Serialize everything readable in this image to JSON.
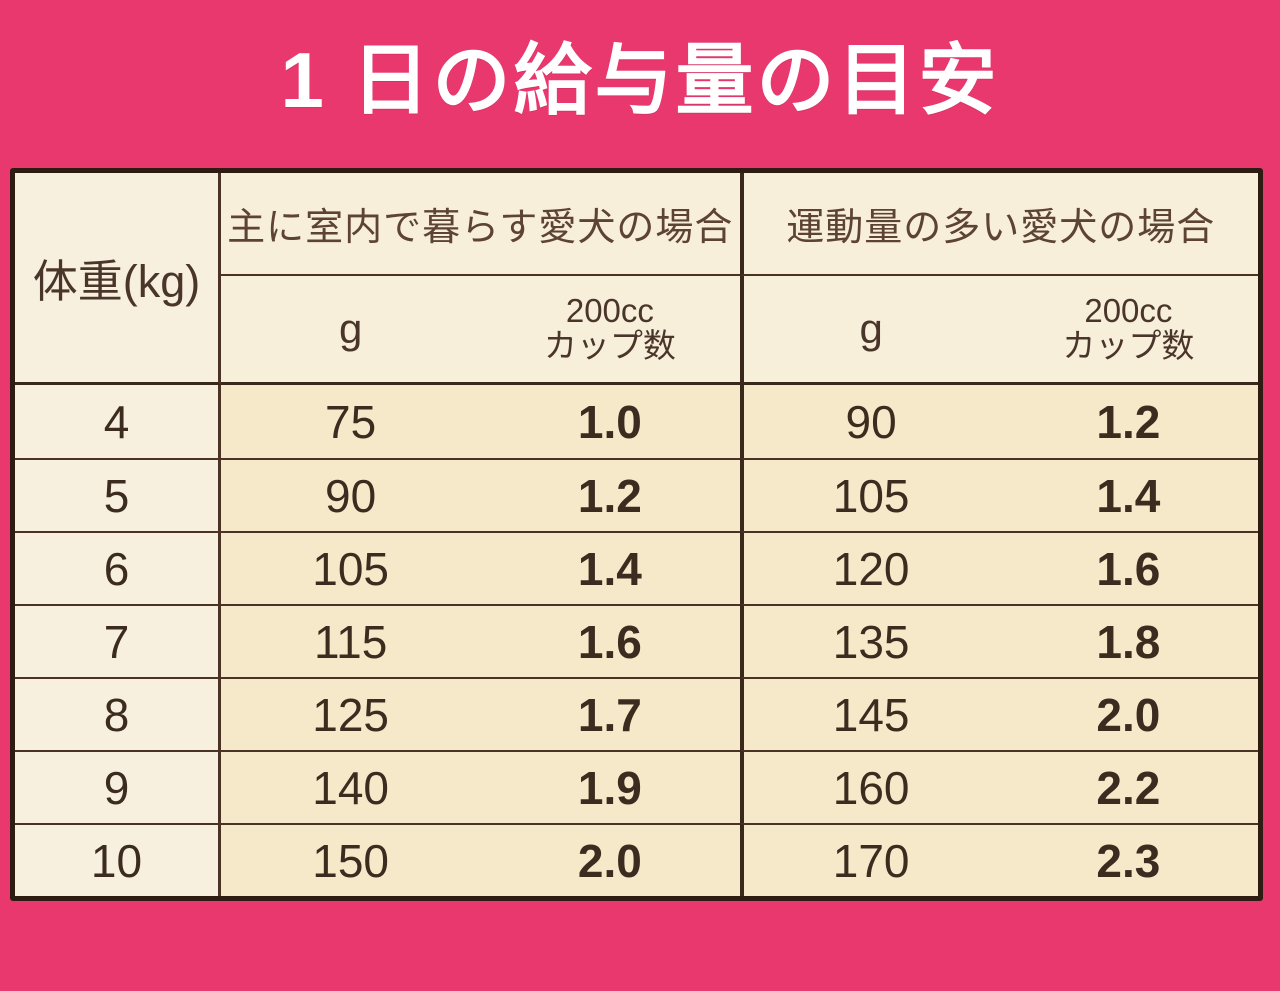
{
  "title": "1 日の給与量の目安",
  "colors": {
    "background": "#E8386E",
    "title_text": "#FFFFFF",
    "table_cream": "#F8EFDA",
    "data_cell": "#F6E9CA",
    "weight_cell": "#F8F0DF",
    "outer_border": "#2E1C12",
    "grid_line": "#4A3225",
    "number_text": "#3C2C20",
    "header_text": "#5D4334"
  },
  "table": {
    "weight_header": "体重(kg)",
    "groups": [
      {
        "title": "主に室内で暮らす愛犬の場合",
        "g_label": "g",
        "cup_label_line1": "200cc",
        "cup_label_line2": "カップ数"
      },
      {
        "title": "運動量の多い愛犬の場合",
        "g_label": "g",
        "cup_label_line1": "200cc",
        "cup_label_line2": "カップ数"
      }
    ],
    "rows": [
      {
        "weight": "4",
        "indoor_g": "75",
        "indoor_cups": "1.0",
        "active_g": "90",
        "active_cups": "1.2"
      },
      {
        "weight": "5",
        "indoor_g": "90",
        "indoor_cups": "1.2",
        "active_g": "105",
        "active_cups": "1.4"
      },
      {
        "weight": "6",
        "indoor_g": "105",
        "indoor_cups": "1.4",
        "active_g": "120",
        "active_cups": "1.6"
      },
      {
        "weight": "7",
        "indoor_g": "115",
        "indoor_cups": "1.6",
        "active_g": "135",
        "active_cups": "1.8"
      },
      {
        "weight": "8",
        "indoor_g": "125",
        "indoor_cups": "1.7",
        "active_g": "145",
        "active_cups": "2.0"
      },
      {
        "weight": "9",
        "indoor_g": "140",
        "indoor_cups": "1.9",
        "active_g": "160",
        "active_cups": "2.2"
      },
      {
        "weight": "10",
        "indoor_g": "150",
        "indoor_cups": "2.0",
        "active_g": "170",
        "active_cups": "2.3"
      }
    ]
  },
  "chart_data": {
    "type": "table",
    "title": "1 日の給与量の目安",
    "column_groups": [
      "体重(kg)",
      "主に室内で暮らす愛犬の場合",
      "運動量の多い愛犬の場合"
    ],
    "columns": [
      "体重(kg)",
      "主に室内で暮らす愛犬の場合 g",
      "主に室内で暮らす愛犬の場合 200ccカップ数",
      "運動量の多い愛犬の場合 g",
      "運動量の多い愛犬の場合 200ccカップ数"
    ],
    "rows": [
      [
        "4",
        "75",
        "1.0",
        "90",
        "1.2"
      ],
      [
        "5",
        "90",
        "1.2",
        "105",
        "1.4"
      ],
      [
        "6",
        "105",
        "1.4",
        "120",
        "1.6"
      ],
      [
        "7",
        "115",
        "1.6",
        "135",
        "1.8"
      ],
      [
        "8",
        "125",
        "1.7",
        "145",
        "2.0"
      ],
      [
        "9",
        "140",
        "1.9",
        "160",
        "2.2"
      ],
      [
        "10",
        "150",
        "2.0",
        "170",
        "2.3"
      ]
    ]
  }
}
